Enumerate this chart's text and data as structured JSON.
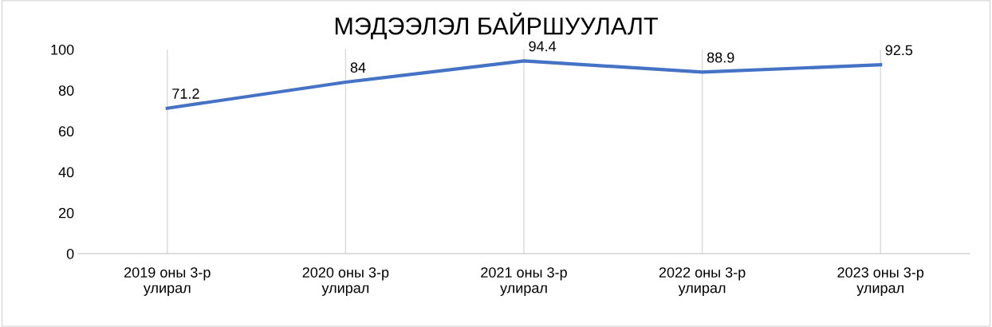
{
  "chart_data": {
    "type": "line",
    "title": "МЭДЭЭЛЭЛ БАЙРШУУЛАЛТ",
    "categories": [
      "2019 оны 3-р\nулирал",
      "2020 оны 3-р\nулирал",
      "2021 оны 3-р\nулирал",
      "2022 оны 3-р\nулирал",
      "2023 оны 3-р\nулирал"
    ],
    "series": [
      {
        "color": "#4472c4",
        "values": [
          71.2,
          84,
          94.4,
          88.9,
          92.5
        ]
      }
    ],
    "ylim": [
      0,
      100
    ],
    "yticks": [
      0,
      20,
      40,
      60,
      80,
      100
    ],
    "grid": "x",
    "data_labels": true,
    "marker": "none",
    "line_style": "solid",
    "legend": false
  }
}
